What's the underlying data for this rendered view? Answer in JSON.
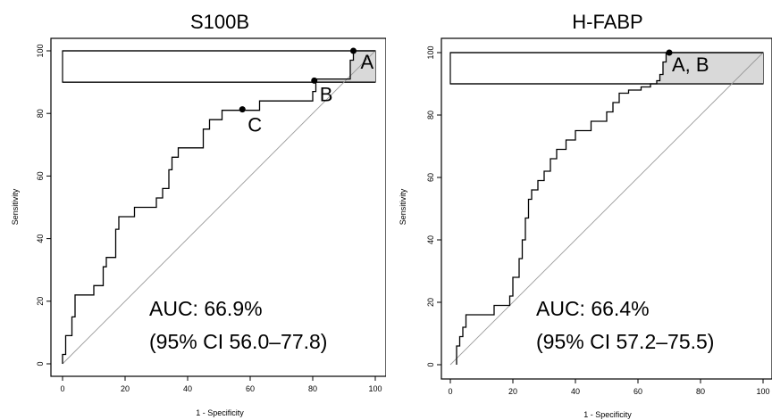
{
  "chart_data": [
    {
      "type": "line",
      "title": "S100B",
      "xlabel": "1 - Specificity",
      "ylabel": "Sensitivity",
      "xlim": [
        0,
        100
      ],
      "ylim": [
        0,
        100
      ],
      "xticks": [
        "0",
        "20",
        "40",
        "60",
        "80",
        "100"
      ],
      "yticks": [
        "0",
        "20",
        "40",
        "60",
        "80",
        "100"
      ],
      "reference_line": {
        "x": [
          0,
          100
        ],
        "y": [
          0,
          100
        ]
      },
      "sensitivity_band": [
        90,
        100
      ],
      "roc": {
        "x": [
          0.0,
          0.0,
          1.0,
          1.0,
          3.0,
          3.0,
          4.0,
          4.0,
          5.0,
          5.0,
          10.0,
          10.0,
          13.0,
          13.0,
          14.0,
          14.0,
          17.0,
          17.0,
          18.0,
          18.0,
          23.0,
          23.0,
          30.0,
          30.0,
          32.0,
          32.0,
          34.0,
          34.0,
          35.0,
          35.0,
          37.0,
          37.0,
          38.0,
          38.0,
          45.0,
          45.0,
          47.0,
          47.0,
          51.0,
          51.0,
          57.0,
          57.0,
          63.0,
          63.0,
          80.0,
          80.0,
          81.0,
          81.0,
          92.0,
          92.0,
          93.0,
          93.0,
          100.0
        ],
        "y": [
          0.0,
          3.0,
          3.0,
          9.0,
          9.0,
          15.0,
          15.0,
          22.0,
          22.0,
          22.0,
          22.0,
          25.0,
          25.0,
          31.0,
          31.0,
          34.0,
          34.0,
          43.0,
          43.0,
          47.0,
          47.0,
          50.0,
          50.0,
          53.0,
          53.0,
          56.0,
          56.0,
          62.0,
          62.0,
          66.0,
          66.0,
          69.0,
          69.0,
          69.0,
          69.0,
          75.0,
          75.0,
          78.0,
          78.0,
          81.0,
          81.0,
          81.0,
          81.0,
          84.0,
          84.0,
          87.0,
          87.0,
          91.0,
          91.0,
          97.0,
          97.0,
          100.0,
          100.0
        ]
      },
      "points": [
        {
          "label": "A",
          "x": 93,
          "y": 100
        },
        {
          "label": "B",
          "x": 80.5,
          "y": 90.5
        },
        {
          "label": "C",
          "x": 57.5,
          "y": 81.3
        }
      ],
      "annotation_lines": [
        "AUC: 66.9%",
        "(95% CI 56.0–77.8)"
      ]
    },
    {
      "type": "line",
      "title": "H-FABP",
      "xlabel": "1 - Specificity",
      "ylabel": "Sensitivity",
      "xlim": [
        0,
        100
      ],
      "ylim": [
        0,
        100
      ],
      "xticks": [
        "0",
        "20",
        "40",
        "60",
        "80",
        "100"
      ],
      "yticks": [
        "0",
        "20",
        "40",
        "60",
        "80",
        "100"
      ],
      "reference_line": {
        "x": [
          0,
          100
        ],
        "y": [
          0,
          100
        ]
      },
      "sensitivity_band": [
        90,
        100
      ],
      "roc": {
        "x": [
          2.0,
          2.0,
          3.0,
          3.0,
          4.0,
          4.0,
          5.0,
          5.0,
          14.0,
          14.0,
          19.0,
          19.0,
          20.0,
          20.0,
          22.0,
          22.0,
          23.0,
          23.0,
          24.0,
          24.0,
          25.0,
          25.0,
          26.0,
          26.0,
          28.0,
          28.0,
          30.0,
          30.0,
          32.0,
          32.0,
          34.0,
          34.0,
          36.0,
          36.0,
          37.0,
          37.0,
          38.0,
          38.0,
          40.0,
          40.0,
          45.0,
          45.0,
          50.0,
          50.0,
          52.0,
          52.0,
          54.0,
          54.0,
          57.0,
          57.0,
          59.0,
          59.0,
          61.0,
          61.0,
          64.0,
          64.0,
          66.0,
          66.0,
          67.0,
          67.0,
          68.0,
          68.0,
          69.0,
          69.0,
          70.0,
          70.0,
          100.0
        ],
        "y": [
          0.0,
          6.0,
          6.0,
          9.0,
          9.0,
          12.0,
          12.0,
          16.0,
          16.0,
          19.0,
          19.0,
          22.0,
          22.0,
          28.0,
          28.0,
          34.0,
          34.0,
          40.0,
          40.0,
          47.0,
          47.0,
          53.0,
          53.0,
          56.0,
          56.0,
          59.0,
          59.0,
          62.0,
          62.0,
          66.0,
          66.0,
          69.0,
          69.0,
          69.0,
          69.0,
          72.0,
          72.0,
          72.0,
          72.0,
          75.0,
          75.0,
          78.0,
          78.0,
          81.0,
          81.0,
          84.0,
          84.0,
          87.0,
          87.0,
          88.0,
          88.0,
          88.0,
          88.0,
          89.0,
          89.0,
          90.0,
          90.0,
          91.0,
          91.0,
          93.0,
          93.0,
          97.0,
          97.0,
          100.0,
          100.0,
          100.0,
          100.0
        ]
      },
      "points": [
        {
          "label": "A, B",
          "x": 70,
          "y": 100
        }
      ],
      "annotation_lines": [
        "AUC: 66.4%",
        "(95% CI 57.2–75.5)"
      ]
    }
  ]
}
